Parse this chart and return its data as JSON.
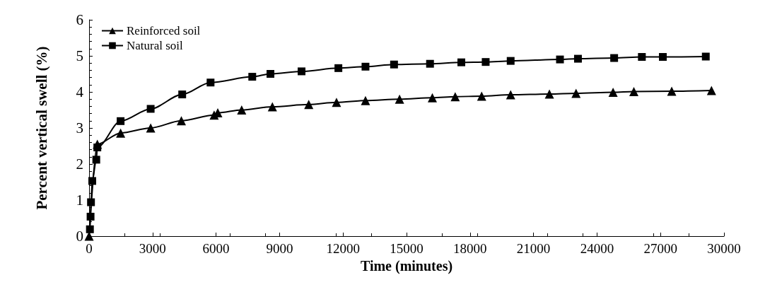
{
  "chart_data": {
    "type": "line",
    "xlabel": "Time (minutes)",
    "ylabel": "Percent vertical swell (%)",
    "xlim": [
      0,
      30000
    ],
    "xticks": [
      0,
      3000,
      6000,
      9000,
      12000,
      15000,
      18000,
      21000,
      24000,
      27000,
      30000
    ],
    "ylim": [
      0,
      6
    ],
    "yticks": [
      0,
      1,
      2,
      3,
      4,
      5,
      6
    ],
    "grid": false,
    "legend": "top left",
    "line_style": "solid",
    "series": [
      {
        "name": "Reinforced soil",
        "color": "#000000",
        "marker": "triangle",
        "x": [
          0,
          390,
          1490,
          2910,
          4360,
          5910,
          6080,
          7210,
          8660,
          10380,
          11690,
          13060,
          14670,
          16220,
          17300,
          18550,
          19920,
          21750,
          23010,
          24760,
          25740,
          27530,
          29410
        ],
        "values": [
          0,
          2.55,
          2.86,
          3.0,
          3.2,
          3.36,
          3.42,
          3.5,
          3.59,
          3.65,
          3.71,
          3.76,
          3.8,
          3.84,
          3.87,
          3.88,
          3.92,
          3.94,
          3.96,
          3.99,
          4.01,
          4.02,
          4.04
        ]
      },
      {
        "name": "Natural soil",
        "color": "#000000",
        "marker": "square",
        "x": [
          40,
          70,
          90,
          150,
          340,
          390,
          1490,
          2910,
          4400,
          5740,
          7710,
          8570,
          10040,
          11780,
          13060,
          14410,
          16110,
          17590,
          18740,
          19920,
          22250,
          23100,
          24810,
          26120,
          27110,
          29140
        ],
        "values": [
          0.19,
          0.54,
          0.94,
          1.53,
          2.12,
          2.46,
          3.19,
          3.53,
          3.93,
          4.26,
          4.42,
          4.5,
          4.57,
          4.66,
          4.7,
          4.76,
          4.78,
          4.82,
          4.83,
          4.86,
          4.9,
          4.92,
          4.94,
          4.97,
          4.97,
          4.98
        ]
      }
    ]
  }
}
